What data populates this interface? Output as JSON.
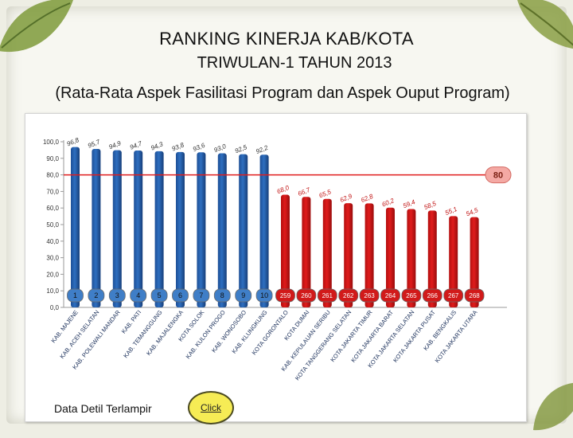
{
  "title": "RANKING KINERJA KAB/KOTA",
  "subtitle": "TRIWULAN-1 TAHUN 2013",
  "subtitle2": "(Rata-Rata Aspek Fasilitasi Program dan Aspek Ouput Program)",
  "footer": {
    "detail_text": "Data Detil Terlampir",
    "click_label": "Click"
  },
  "colors": {
    "blue_bar": "#2e6fc0",
    "red_bar": "#e01c1c",
    "target_line": "#e01c1c",
    "target_badge": "#f4a9a4"
  },
  "chart_data": {
    "type": "bar",
    "ylim": [
      0,
      100
    ],
    "yticks": [
      "0,0",
      "10,0",
      "20,0",
      "30,0",
      "40,0",
      "50,0",
      "60,0",
      "70,0",
      "80,0",
      "90,0",
      "100,0"
    ],
    "target": 80,
    "target_label": "80",
    "grid": false,
    "categories": [
      "KAB. MAJENE",
      "KAB. ACEH SELATAN",
      "KAB. POLEWALI MANDAR",
      "KAB. PATI",
      "KAB. TEMANGGUNG",
      "KAB. MAJALENGKA",
      "KOTA SOLOK",
      "KAB. KULON PROGO",
      "KAB. WONOSOBO",
      "KAB. KLUNGKUNG",
      "KOTA GORONTALO",
      "KOTA DUMAI",
      "KAB. KEPULAUAN SERIBU",
      "KOTA TANGGERANG SELATAN",
      "KOTA JAKARTA TIMUR",
      "KOTA JAKARTA BARAT",
      "KOTA JAKARTA SELATAN",
      "KOTA JAKARTA PUSAT",
      "KAB. BENGKALIS",
      "KOTA JAKARTA UTARA"
    ],
    "values": [
      96.8,
      95.7,
      94.9,
      94.7,
      94.3,
      93.8,
      93.6,
      93.0,
      92.5,
      92.2,
      68.0,
      66.7,
      65.5,
      62.9,
      62.8,
      60.2,
      59.4,
      58.5,
      55.1,
      54.5
    ],
    "value_labels": [
      "96,8",
      "95,7",
      "94,9",
      "94,7",
      "94,3",
      "93,8",
      "93,6",
      "93,0",
      "92,5",
      "92,2",
      "68,0",
      "66,7",
      "65,5",
      "62,9",
      "62,8",
      "60,2",
      "59,4",
      "58,5",
      "55,1",
      "54,5"
    ],
    "ranks": [
      "1",
      "2",
      "3",
      "4",
      "5",
      "6",
      "7",
      "8",
      "9",
      "10",
      "259",
      "260",
      "261",
      "262",
      "263",
      "264",
      "265",
      "266",
      "267",
      "268"
    ]
  }
}
